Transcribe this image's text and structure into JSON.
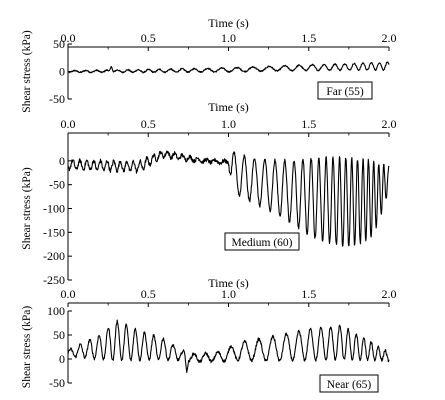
{
  "chart_data": [
    {
      "type": "line",
      "annotation": "Far (55)",
      "xlabel": "Time (s)",
      "ylabel": "Shear stress (kPa)",
      "xlim": [
        0,
        2.0
      ],
      "ylim": [
        -50,
        50
      ],
      "x_ticks": [
        "0.0",
        "0.5",
        "1.0",
        "1.5",
        "2.0"
      ],
      "y_ticks": [
        "50",
        "0",
        "-50"
      ],
      "series": [
        {
          "signal": {
            "base": [
              [
                0,
                0
              ],
              [
                0.5,
                1
              ],
              [
                1.0,
                3
              ],
              [
                1.5,
                7
              ],
              [
                2.0,
                10
              ]
            ],
            "osc": [
              [
                0,
                1.5
              ],
              [
                0.5,
                2.5
              ],
              [
                1.0,
                3.5
              ],
              [
                1.5,
                5
              ],
              [
                2.0,
                7
              ]
            ],
            "freq": 14,
            "noise": 1.2
          },
          "events": [
            {
              "t": 0.27,
              "v": 10
            }
          ]
        }
      ]
    },
    {
      "type": "line",
      "annotation": "Medium (60)",
      "xlabel": "Time (s)",
      "ylabel": "Shear stress (kPa)",
      "xlim": [
        0,
        2.0
      ],
      "ylim": [
        -250,
        50
      ],
      "x_ticks": [
        "0.0",
        "0.5",
        "1.0",
        "1.5",
        "2.0"
      ],
      "y_ticks": [
        "0",
        "-50",
        "-100",
        "-150",
        "-200",
        "-250"
      ],
      "series": [
        {
          "signal": {
            "base": [
              [
                0,
                -8
              ],
              [
                0.45,
                -12
              ],
              [
                0.55,
                8
              ],
              [
                0.6,
                15
              ],
              [
                0.7,
                8
              ],
              [
                0.85,
                0
              ],
              [
                1.0,
                -3
              ],
              [
                1.05,
                -30
              ],
              [
                1.3,
                -55
              ],
              [
                1.55,
                -80
              ],
              [
                1.75,
                -88
              ],
              [
                1.9,
                -80
              ],
              [
                2.0,
                -40
              ]
            ],
            "osc": [
              [
                0,
                9
              ],
              [
                0.45,
                11
              ],
              [
                0.55,
                7
              ],
              [
                0.7,
                5
              ],
              [
                0.85,
                3
              ],
              [
                1.0,
                3
              ],
              [
                1.02,
                40
              ],
              [
                1.3,
                55
              ],
              [
                1.55,
                85
              ],
              [
                1.75,
                95
              ],
              [
                1.9,
                80
              ],
              [
                2.0,
                25
              ]
            ],
            "freq": 22,
            "noise": 4
          },
          "events": []
        }
      ]
    },
    {
      "type": "line",
      "annotation": "Near (65)",
      "xlabel": "Time (s)",
      "ylabel": "Shear stress (kPa)",
      "xlim": [
        0,
        2.0
      ],
      "ylim": [
        -50,
        100
      ],
      "x_ticks": [
        "0.0",
        "0.5",
        "1.0",
        "1.5",
        "2.0"
      ],
      "y_ticks": [
        "100",
        "50",
        "0",
        "-50"
      ],
      "series": [
        {
          "signal": {
            "base": [
              [
                0,
                12
              ],
              [
                0.2,
                25
              ],
              [
                0.3,
                38
              ],
              [
                0.45,
                28
              ],
              [
                0.6,
                20
              ],
              [
                0.7,
                8
              ],
              [
                0.8,
                2
              ],
              [
                0.95,
                5
              ],
              [
                1.05,
                15
              ],
              [
                1.3,
                22
              ],
              [
                1.5,
                30
              ],
              [
                1.7,
                34
              ],
              [
                1.85,
                20
              ],
              [
                2.0,
                5
              ]
            ],
            "osc": [
              [
                0,
                6
              ],
              [
                0.2,
                25
              ],
              [
                0.3,
                42
              ],
              [
                0.45,
                30
              ],
              [
                0.6,
                22
              ],
              [
                0.7,
                10
              ],
              [
                0.8,
                8
              ],
              [
                0.95,
                10
              ],
              [
                1.05,
                18
              ],
              [
                1.3,
                26
              ],
              [
                1.5,
                32
              ],
              [
                1.7,
                36
              ],
              [
                1.85,
                22
              ],
              [
                2.0,
                8
              ]
            ],
            "freq": 16,
            "noise": 3
          },
          "events": [
            {
              "t": 0.74,
              "v": -28
            }
          ]
        }
      ]
    }
  ]
}
